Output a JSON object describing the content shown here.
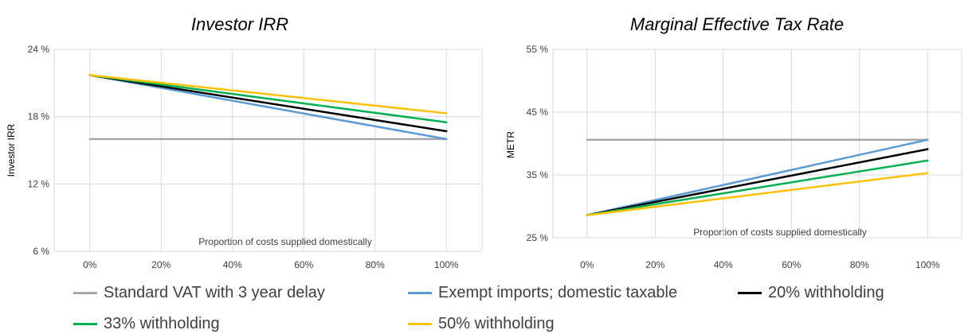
{
  "legend": [
    {
      "name": "Standard VAT with 3 year delay",
      "color": "#a6a6a6"
    },
    {
      "name": "Exempt imports; domestic taxable",
      "color": "#5b9bd5"
    },
    {
      "name": "20% withholding",
      "color": "#000000"
    },
    {
      "name": "33% withholding",
      "color": "#00b050"
    },
    {
      "name": "50% withholding",
      "color": "#ffc000"
    }
  ],
  "chart_data": [
    {
      "type": "line",
      "title": "Investor IRR",
      "xlabel": "Proportion of costs supplied domestically",
      "ylabel": "Investor IRR",
      "x": [
        0,
        100
      ],
      "x_tick_labels": [
        "0%",
        "20%",
        "40%",
        "60%",
        "80%",
        "100%"
      ],
      "x_ticks": [
        0,
        20,
        40,
        60,
        80,
        100
      ],
      "xlim": [
        -10,
        110
      ],
      "y_tick_labels": [
        "6 %",
        "12 %",
        "18 %",
        "24 %"
      ],
      "y_ticks": [
        6,
        12,
        18,
        24
      ],
      "ylim": [
        6,
        24
      ],
      "grid": true,
      "series": [
        {
          "name": "Standard VAT with 3 year delay",
          "color": "#a6a6a6",
          "values": [
            16.0,
            16.0
          ]
        },
        {
          "name": "Exempt imports; domestic taxable",
          "color": "#5b9bd5",
          "values": [
            21.7,
            16.0
          ]
        },
        {
          "name": "20% withholding",
          "color": "#000000",
          "values": [
            21.7,
            16.7
          ]
        },
        {
          "name": "33% withholding",
          "color": "#00b050",
          "values": [
            21.7,
            17.5
          ]
        },
        {
          "name": "50% withholding",
          "color": "#ffc000",
          "values": [
            21.7,
            18.3
          ]
        }
      ]
    },
    {
      "type": "line",
      "title": "Marginal Effective Tax Rate",
      "xlabel": "Proportion of costs supplied domestically",
      "ylabel": "METR",
      "x": [
        0,
        100
      ],
      "x_tick_labels": [
        "0%",
        "20%",
        "40%",
        "60%",
        "80%",
        "100%"
      ],
      "x_ticks": [
        0,
        20,
        40,
        60,
        80,
        100
      ],
      "xlim": [
        -10,
        110
      ],
      "y_tick_labels": [
        "25 %",
        "35 %",
        "45 %",
        "55 %"
      ],
      "y_ticks": [
        25,
        35,
        45,
        55
      ],
      "ylim": [
        25,
        55
      ],
      "grid": true,
      "series": [
        {
          "name": "Standard VAT with 3 year delay",
          "color": "#a6a6a6",
          "values": [
            40.6,
            40.6
          ]
        },
        {
          "name": "Exempt imports; domestic taxable",
          "color": "#5b9bd5",
          "values": [
            28.6,
            40.6
          ]
        },
        {
          "name": "20% withholding",
          "color": "#000000",
          "values": [
            28.6,
            39.1
          ]
        },
        {
          "name": "33% withholding",
          "color": "#00b050",
          "values": [
            28.6,
            37.3
          ]
        },
        {
          "name": "50% withholding",
          "color": "#ffc000",
          "values": [
            28.6,
            35.3
          ]
        }
      ]
    }
  ]
}
